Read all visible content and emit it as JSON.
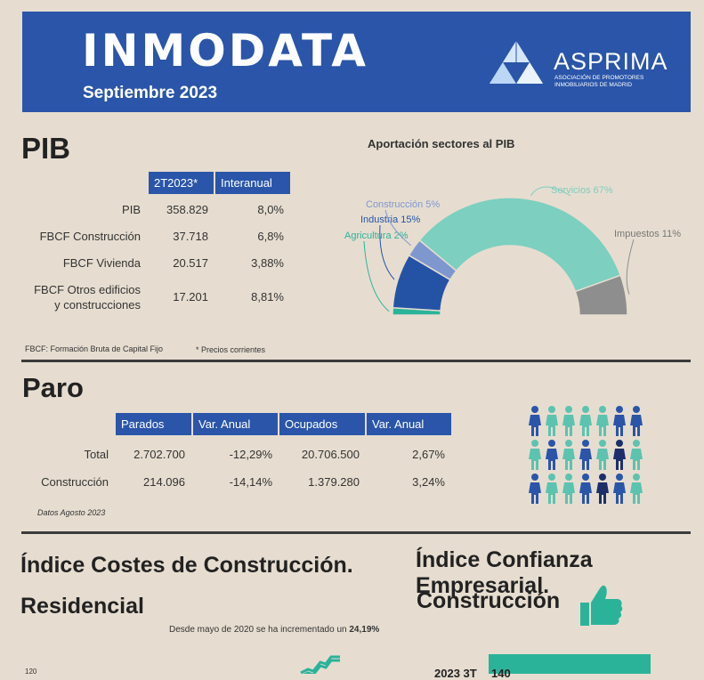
{
  "header": {
    "title": "INMODATA",
    "subtitle": "Septiembre 2023",
    "logo_name": "ASPRIMA",
    "logo_line1": "ASOCIACIÓN DE PROMOTORES",
    "logo_line2": "INMOBILIARIOS DE MADRID"
  },
  "pib": {
    "heading": "PIB",
    "columns": [
      "2T2023*",
      "Interanual"
    ],
    "rows": [
      {
        "label": "PIB",
        "value": "358.829",
        "change": "8,0%"
      },
      {
        "label": "FBCF Construcción",
        "value": "37.718",
        "change": "6,8%"
      },
      {
        "label": "FBCF Vivienda",
        "value": "20.517",
        "change": "3,88%"
      },
      {
        "label1": "FBCF Otros edificios",
        "label2": "y construcciones",
        "value": "17.201",
        "change": "8,81%"
      }
    ],
    "footnote_left": "FBCF: Formación Bruta de Capital Fijo",
    "footnote_right": "* Precios corrientes"
  },
  "chart_data": [
    {
      "type": "pie",
      "title": "Aportación sectores al PIB",
      "categories": [
        "Agricultura",
        "Industria",
        "Construcción",
        "Servicios",
        "Impuestos"
      ],
      "values": [
        2,
        15,
        5,
        67,
        11
      ],
      "labels": [
        "Agricultura 2%",
        "Industria 15%",
        "Construcción 5%",
        "Servicios 67%",
        "Impuestos 11%"
      ],
      "colors": [
        "#2bb39a",
        "#2453a6",
        "#7f97cf",
        "#7dcfc0",
        "#8e8e8e"
      ],
      "legend": "none",
      "shape": "semicircle-donut"
    }
  ],
  "paro": {
    "heading": "Paro",
    "columns": [
      "Parados",
      "Var. Anual",
      "Ocupados",
      "Var. Anual"
    ],
    "rows": [
      {
        "label": "Total",
        "parados": "2.702.700",
        "var1": "-12,29%",
        "ocupados": "20.706.500",
        "var2": "2,67%"
      },
      {
        "label": "Construcción",
        "parados": "214.096",
        "var1": "-14,14%",
        "ocupados": "1.379.280",
        "var2": "3,24%"
      }
    ],
    "footnote": "Datos Agosto 2023",
    "people_colors": [
      "#2a55a9",
      "#5cc3b0",
      "#1c2f6b"
    ]
  },
  "costes": {
    "heading1": "Índice Costes de Construcción.",
    "heading2": "Residencial",
    "note_prefix": "Desde mayo de 2020 se ha incrementado un ",
    "note_value": "24,19%",
    "axis_tick": "120"
  },
  "confianza": {
    "heading1": "Índice Confianza Empresarial.",
    "heading2": "Construcción",
    "bar_label": "2023 3T",
    "bar_value": "140"
  }
}
